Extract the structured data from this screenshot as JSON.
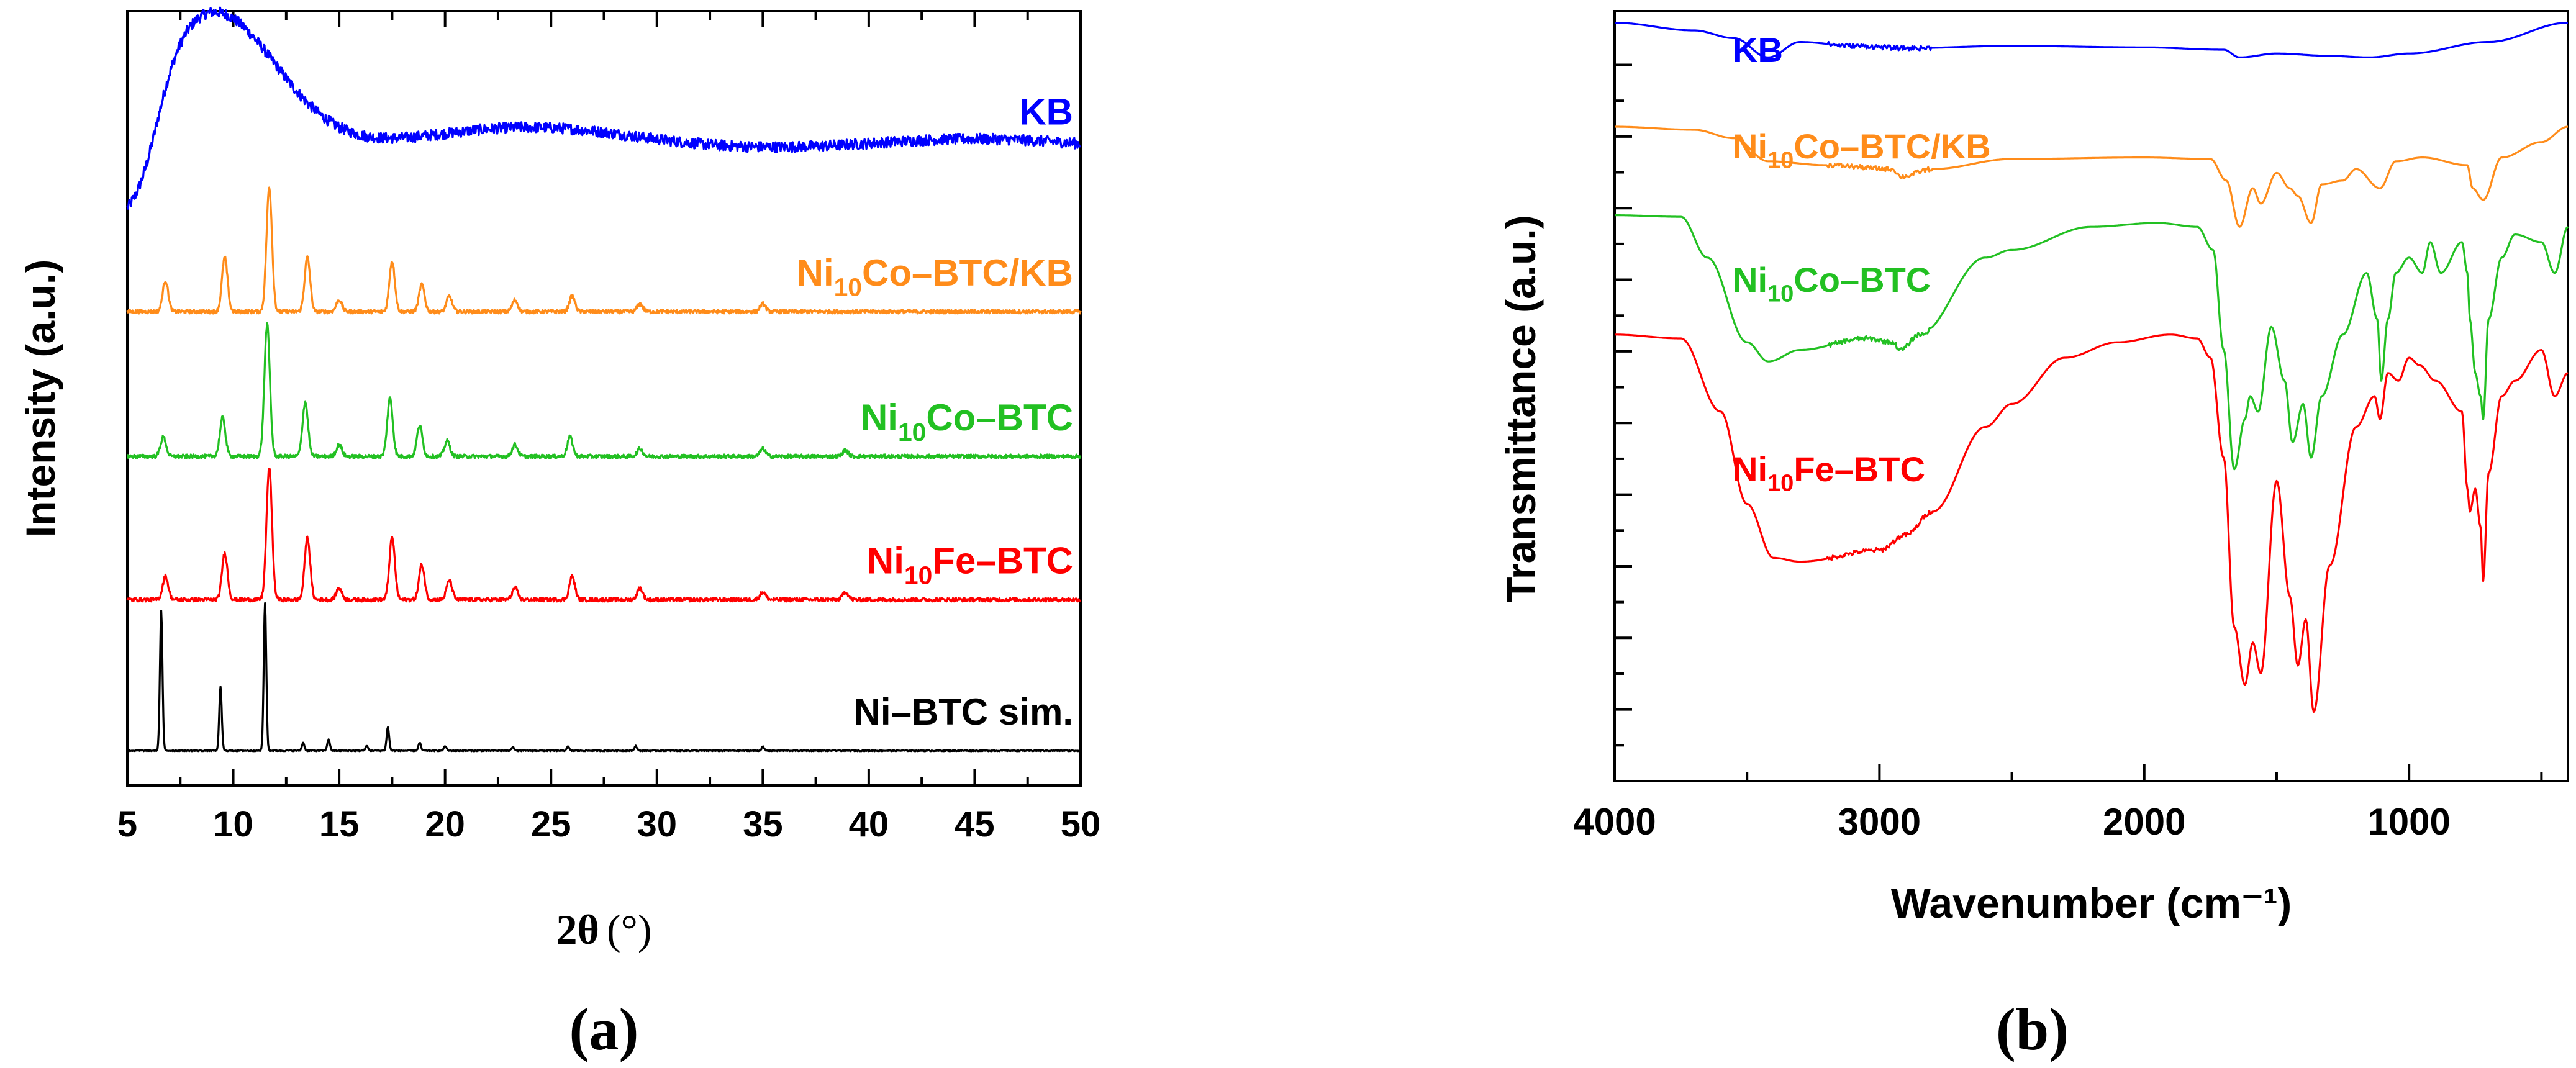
{
  "chart_data": [
    {
      "type": "line",
      "panel_label": "(a)",
      "xlabel_symbol": "2θ",
      "xlabel_unit": "(°)",
      "ylabel": "Intensity (a.u.)",
      "xlim": [
        5,
        50
      ],
      "x_ticks": [
        5,
        10,
        15,
        20,
        25,
        30,
        35,
        40,
        45,
        50
      ],
      "y_ticks_shown": false,
      "grid": false,
      "offset_stacked": true,
      "series": [
        {
          "name": "KB",
          "label": "KB",
          "color": "#0000ff",
          "baseline": 0.82,
          "kind": "amorphous",
          "broad_humps": [
            {
              "center": 9.0,
              "height": 0.18,
              "width": 3.0
            },
            {
              "center": 24.0,
              "height": 0.03,
              "width": 5.0
            },
            {
              "center": 45.0,
              "height": 0.015,
              "width": 5.0
            }
          ]
        },
        {
          "name": "Ni10Co-BTC/KB",
          "label_parts": [
            "Ni",
            "10",
            "Co–BTC/KB"
          ],
          "color": "#ff8c1a",
          "baseline": 0.612,
          "kind": "crystalline",
          "peaks": [
            {
              "x": 6.8,
              "h": 0.04
            },
            {
              "x": 9.6,
              "h": 0.07
            },
            {
              "x": 11.7,
              "h": 0.16
            },
            {
              "x": 13.5,
              "h": 0.07
            },
            {
              "x": 15.0,
              "h": 0.015
            },
            {
              "x": 17.5,
              "h": 0.065
            },
            {
              "x": 18.9,
              "h": 0.035
            },
            {
              "x": 20.2,
              "h": 0.02
            },
            {
              "x": 23.3,
              "h": 0.015
            },
            {
              "x": 26.0,
              "h": 0.02
            },
            {
              "x": 29.2,
              "h": 0.01
            },
            {
              "x": 35.0,
              "h": 0.01
            }
          ]
        },
        {
          "name": "Ni10Co-BTC",
          "label_parts": [
            "Ni",
            "10",
            "Co–BTC"
          ],
          "color": "#22c022",
          "baseline": 0.425,
          "kind": "crystalline",
          "peaks": [
            {
              "x": 6.7,
              "h": 0.025
            },
            {
              "x": 9.5,
              "h": 0.05
            },
            {
              "x": 11.6,
              "h": 0.17
            },
            {
              "x": 13.4,
              "h": 0.07
            },
            {
              "x": 15.0,
              "h": 0.015
            },
            {
              "x": 17.4,
              "h": 0.075
            },
            {
              "x": 18.8,
              "h": 0.04
            },
            {
              "x": 20.1,
              "h": 0.02
            },
            {
              "x": 23.3,
              "h": 0.015
            },
            {
              "x": 25.9,
              "h": 0.025
            },
            {
              "x": 29.2,
              "h": 0.01
            },
            {
              "x": 35.0,
              "h": 0.01
            },
            {
              "x": 38.9,
              "h": 0.008
            }
          ]
        },
        {
          "name": "Ni10Fe-BTC",
          "label_parts": [
            "Ni",
            "10",
            "Fe–BTC"
          ],
          "color": "#ff0000",
          "baseline": 0.24,
          "kind": "crystalline",
          "peaks": [
            {
              "x": 6.8,
              "h": 0.03
            },
            {
              "x": 9.6,
              "h": 0.06
            },
            {
              "x": 11.7,
              "h": 0.17
            },
            {
              "x": 13.5,
              "h": 0.08
            },
            {
              "x": 15.0,
              "h": 0.015
            },
            {
              "x": 17.5,
              "h": 0.08
            },
            {
              "x": 18.9,
              "h": 0.045
            },
            {
              "x": 20.2,
              "h": 0.025
            },
            {
              "x": 23.3,
              "h": 0.015
            },
            {
              "x": 26.0,
              "h": 0.03
            },
            {
              "x": 29.2,
              "h": 0.015
            },
            {
              "x": 35.0,
              "h": 0.01
            },
            {
              "x": 38.9,
              "h": 0.01
            }
          ]
        },
        {
          "name": "Ni-BTC sim.",
          "label": "Ni–BTC sim.",
          "color": "#000000",
          "baseline": 0.045,
          "kind": "simulated",
          "peaks": [
            {
              "x": 6.6,
              "h": 0.18
            },
            {
              "x": 9.4,
              "h": 0.082
            },
            {
              "x": 11.5,
              "h": 0.19
            },
            {
              "x": 13.3,
              "h": 0.01
            },
            {
              "x": 14.5,
              "h": 0.015
            },
            {
              "x": 16.3,
              "h": 0.006
            },
            {
              "x": 17.3,
              "h": 0.03
            },
            {
              "x": 18.8,
              "h": 0.01
            },
            {
              "x": 20.0,
              "h": 0.006
            },
            {
              "x": 23.2,
              "h": 0.005
            },
            {
              "x": 25.8,
              "h": 0.005
            },
            {
              "x": 29.0,
              "h": 0.006
            },
            {
              "x": 35.0,
              "h": 0.005
            }
          ]
        }
      ]
    },
    {
      "type": "line",
      "panel_label": "(b)",
      "xlabel": "Wavenumber  (cm⁻¹)",
      "ylabel": "Transmittance (a.u.)",
      "xlim": [
        4000,
        400
      ],
      "x_reversed": true,
      "x_ticks": [
        4000,
        3000,
        2000,
        1000
      ],
      "y_ticks_shown": false,
      "grid": false,
      "offset_stacked": true,
      "series": [
        {
          "name": "KB",
          "label": "KB",
          "color": "#0000ff",
          "x": [
            4000,
            3700,
            3550,
            3420,
            3300,
            3100,
            2900,
            2500,
            2000,
            1700,
            1640,
            1500,
            1300,
            1150,
            1000,
            700,
            400
          ],
          "y": [
            0.985,
            0.975,
            0.965,
            0.94,
            0.96,
            0.955,
            0.952,
            0.955,
            0.953,
            0.95,
            0.94,
            0.945,
            0.942,
            0.94,
            0.945,
            0.96,
            0.985
          ]
        },
        {
          "name": "Ni10Co-BTC/KB",
          "label_parts": [
            "Ni",
            "10",
            "Co–BTC/KB"
          ],
          "color": "#ff8c1a",
          "x": [
            4000,
            3700,
            3550,
            3420,
            3200,
            2950,
            2920,
            2800,
            2500,
            2000,
            1750,
            1690,
            1640,
            1590,
            1560,
            1500,
            1450,
            1420,
            1370,
            1330,
            1250,
            1200,
            1110,
            1050,
            950,
            780,
            760,
            720,
            650,
            500,
            400
          ],
          "y": [
            0.85,
            0.846,
            0.835,
            0.805,
            0.8,
            0.795,
            0.785,
            0.795,
            0.808,
            0.81,
            0.808,
            0.78,
            0.72,
            0.77,
            0.75,
            0.79,
            0.77,
            0.76,
            0.725,
            0.775,
            0.78,
            0.795,
            0.77,
            0.805,
            0.81,
            0.8,
            0.77,
            0.755,
            0.81,
            0.83,
            0.85
          ]
        },
        {
          "name": "Ni10Co-BTC",
          "label_parts": [
            "Ni",
            "10",
            "Co–BTC"
          ],
          "color": "#22c022",
          "x": [
            4000,
            3750,
            3650,
            3500,
            3420,
            3300,
            3050,
            2950,
            2920,
            2850,
            2600,
            2500,
            2200,
            1950,
            1800,
            1740,
            1700,
            1660,
            1620,
            1600,
            1570,
            1520,
            1470,
            1440,
            1400,
            1370,
            1330,
            1250,
            1160,
            1120,
            1105,
            1080,
            1050,
            1000,
            950,
            920,
            880,
            800,
            780,
            770,
            750,
            730,
            720,
            700,
            650,
            600,
            500,
            450,
            400
          ],
          "y": [
            0.735,
            0.733,
            0.68,
            0.57,
            0.545,
            0.56,
            0.575,
            0.57,
            0.56,
            0.58,
            0.68,
            0.69,
            0.72,
            0.725,
            0.72,
            0.69,
            0.56,
            0.405,
            0.47,
            0.5,
            0.48,
            0.59,
            0.52,
            0.44,
            0.49,
            0.42,
            0.5,
            0.58,
            0.66,
            0.6,
            0.52,
            0.6,
            0.66,
            0.68,
            0.66,
            0.7,
            0.66,
            0.7,
            0.66,
            0.6,
            0.53,
            0.5,
            0.47,
            0.6,
            0.68,
            0.71,
            0.7,
            0.66,
            0.72
          ]
        },
        {
          "name": "Ni10Fe-BTC",
          "label_parts": [
            "Ni",
            "10",
            "Fe–BTC"
          ],
          "color": "#ff0000",
          "x": [
            4000,
            3750,
            3600,
            3500,
            3400,
            3300,
            3000,
            2900,
            2800,
            2600,
            2500,
            2300,
            2100,
            1900,
            1800,
            1750,
            1700,
            1660,
            1620,
            1590,
            1560,
            1500,
            1450,
            1420,
            1390,
            1360,
            1300,
            1200,
            1130,
            1110,
            1080,
            1040,
            1000,
            960,
            900,
            800,
            780,
            770,
            750,
            730,
            720,
            700,
            650,
            600,
            500,
            450,
            400
          ],
          "y": [
            0.58,
            0.575,
            0.48,
            0.36,
            0.29,
            0.285,
            0.3,
            0.32,
            0.35,
            0.46,
            0.49,
            0.55,
            0.57,
            0.58,
            0.575,
            0.55,
            0.42,
            0.2,
            0.125,
            0.18,
            0.14,
            0.39,
            0.24,
            0.15,
            0.21,
            0.09,
            0.28,
            0.46,
            0.5,
            0.47,
            0.53,
            0.52,
            0.55,
            0.54,
            0.52,
            0.48,
            0.38,
            0.35,
            0.38,
            0.33,
            0.26,
            0.4,
            0.5,
            0.52,
            0.56,
            0.5,
            0.53
          ]
        }
      ]
    }
  ]
}
